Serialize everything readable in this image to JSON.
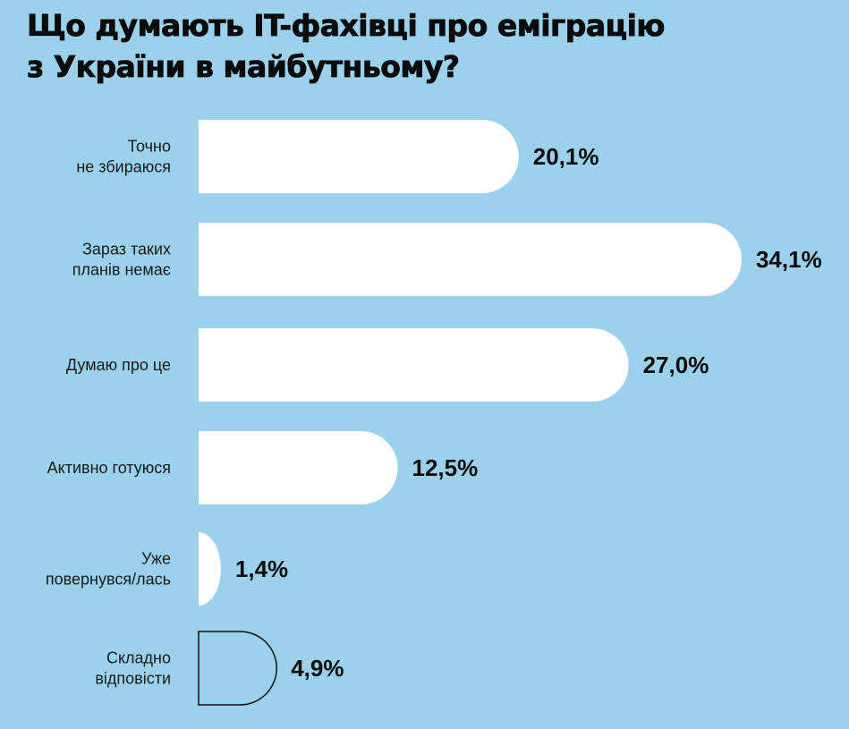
{
  "title_lines": [
    "Що думають IT-фахівці про еміграцію",
    "з України в майбутньому?"
  ],
  "colors": {
    "background": "#9bd1ea",
    "bar_fill": "#ffffff",
    "outline_stroke": "#111111",
    "text": "#111111"
  },
  "chart_data": {
    "type": "bar",
    "orientation": "horizontal",
    "title": "Що думають IT-фахівці про еміграцію з України в майбутньому?",
    "categories": [
      [
        "Точно",
        "не збираюся"
      ],
      [
        "Зараз таких",
        "планів немає"
      ],
      [
        "Думаю про це"
      ],
      [
        "Активно готуюся"
      ],
      [
        "Уже",
        "повернувся/лась"
      ],
      [
        "Складно",
        "відповісти"
      ]
    ],
    "values": [
      20.1,
      34.1,
      27.0,
      12.5,
      1.4,
      4.9
    ],
    "value_labels": [
      "20,1%",
      "34,1%",
      "27,0%",
      "12,5%",
      "1,4%",
      "4,9%"
    ],
    "bar_styles": [
      "filled",
      "filled",
      "filled",
      "filled",
      "filled",
      "outline"
    ],
    "grid": false,
    "legend": "none"
  }
}
